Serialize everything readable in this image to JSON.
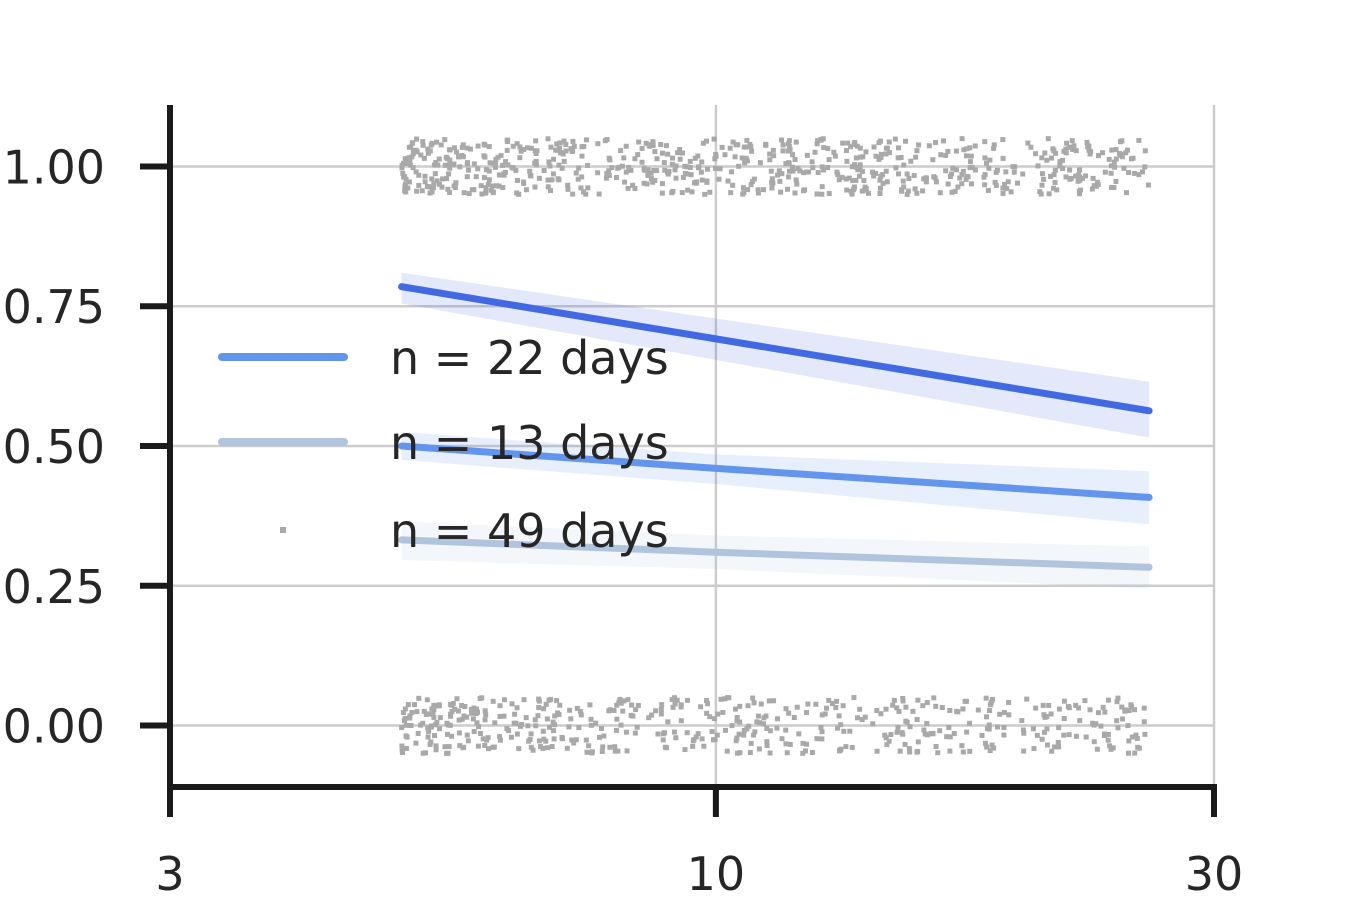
{
  "chart_data": {
    "type": "line",
    "xscale": "log",
    "xlim": [
      3,
      30
    ],
    "ylim": [
      -0.11,
      1.11
    ],
    "grid": true,
    "legend_placement": "center-left",
    "x_ticks": [
      3,
      10,
      30
    ],
    "x_tick_labels": [
      "3",
      "10",
      "30"
    ],
    "y_ticks": [
      0.0,
      0.25,
      0.5,
      0.75,
      1.0
    ],
    "y_tick_labels": [
      "0.00",
      "0.25",
      "0.50",
      "0.75",
      "1.00"
    ],
    "legend": [
      {
        "label": "n = 22 days",
        "kind": "line",
        "color": "#6495ED"
      },
      {
        "label": "n = 13 days",
        "kind": "line",
        "color": "#B0C4DE"
      },
      {
        "label": "n = 49 days",
        "kind": "point",
        "color": "#A9A9A9"
      }
    ],
    "series": [
      {
        "name": "n = 49 days",
        "color": "#4169E1",
        "x": [
          5.0,
          26.0
        ],
        "y": [
          0.785,
          0.563
        ],
        "ci_lower": [
          0.755,
          0.515
        ],
        "ci_upper": [
          0.81,
          0.615
        ]
      },
      {
        "name": "n = 22 days",
        "color": "#6495ED",
        "x": [
          5.0,
          10.0,
          26.0
        ],
        "y": [
          0.5,
          0.46,
          0.408
        ],
        "ci_lower": [
          0.475,
          0.432,
          0.36
        ],
        "ci_upper": [
          0.525,
          0.485,
          0.455
        ]
      },
      {
        "name": "n = 13 days",
        "color": "#B0C4DE",
        "x": [
          5.0,
          10.0,
          26.0
        ],
        "y": [
          0.332,
          0.31,
          0.283
        ],
        "ci_lower": [
          0.296,
          0.28,
          0.245
        ],
        "ci_upper": [
          0.365,
          0.34,
          0.32
        ]
      }
    ],
    "scatter_color": "#A9A9A9",
    "scatter_groups": [
      {
        "y": 1.0,
        "x_range": [
          5.0,
          26.0
        ],
        "jitter": 0.05,
        "count": 700
      },
      {
        "y": 0.0,
        "x_range": [
          5.0,
          26.0
        ],
        "jitter": 0.05,
        "count": 520
      }
    ]
  }
}
